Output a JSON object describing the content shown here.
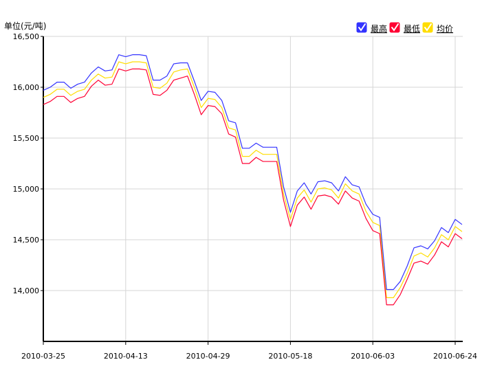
{
  "chart_data": {
    "type": "line",
    "ylabel": "单位(元/吨)",
    "ylim": [
      13500,
      16500
    ],
    "yticks": [
      16500,
      16000,
      15500,
      15000,
      14500,
      14000
    ],
    "ytick_labels": [
      "16,500",
      "16,000",
      "15,500",
      "15,000",
      "14,500",
      "14,000"
    ],
    "xtick_labels": [
      "2010-03-25",
      "2010-04-13",
      "2010-04-29",
      "2010-05-18",
      "2010-06-03",
      "2010-06-24"
    ],
    "xtick_indices": [
      0,
      12,
      24,
      36,
      48,
      60
    ],
    "grid": true,
    "legend_position": "top-right",
    "series": [
      {
        "name": "最高",
        "color": "#3333ff",
        "checked": true,
        "values": [
          15970,
          16000,
          16050,
          16050,
          15990,
          16030,
          16050,
          16140,
          16200,
          16160,
          16170,
          16320,
          16300,
          16320,
          16320,
          16310,
          16070,
          16070,
          16110,
          16230,
          16240,
          16240,
          16060,
          15870,
          15960,
          15950,
          15870,
          15670,
          15650,
          15400,
          15400,
          15450,
          15410,
          15410,
          15410,
          15020,
          14770,
          14980,
          15060,
          14950,
          15070,
          15080,
          15060,
          14980,
          15120,
          15040,
          15020,
          14850,
          14750,
          14720,
          14010,
          14010,
          14090,
          14240,
          14420,
          14440,
          14410,
          14490,
          14620,
          14570,
          14700,
          14650
        ]
      },
      {
        "name": "最低",
        "color": "#ff0033",
        "checked": true,
        "values": [
          15830,
          15860,
          15910,
          15910,
          15850,
          15890,
          15910,
          16010,
          16070,
          16020,
          16030,
          16180,
          16160,
          16180,
          16180,
          16170,
          15930,
          15920,
          15970,
          16070,
          16090,
          16110,
          15930,
          15730,
          15820,
          15810,
          15740,
          15540,
          15510,
          15250,
          15250,
          15310,
          15270,
          15270,
          15270,
          14890,
          14630,
          14840,
          14920,
          14800,
          14930,
          14940,
          14920,
          14850,
          14980,
          14910,
          14880,
          14710,
          14590,
          14560,
          13860,
          13860,
          13960,
          14110,
          14270,
          14290,
          14260,
          14350,
          14480,
          14430,
          14560,
          14510
        ]
      },
      {
        "name": "均价",
        "color": "#ffdd00",
        "checked": true,
        "values": [
          15900,
          15930,
          15980,
          15980,
          15920,
          15960,
          15980,
          16070,
          16130,
          16090,
          16100,
          16250,
          16230,
          16250,
          16250,
          16240,
          16000,
          15990,
          16040,
          16150,
          16170,
          16180,
          16000,
          15800,
          15890,
          15880,
          15800,
          15600,
          15580,
          15320,
          15320,
          15380,
          15340,
          15340,
          15340,
          14950,
          14700,
          14910,
          14990,
          14870,
          15000,
          15010,
          14990,
          14910,
          15050,
          14980,
          14950,
          14780,
          14670,
          14640,
          13930,
          13930,
          14030,
          14170,
          14340,
          14370,
          14330,
          14420,
          14550,
          14500,
          14630,
          14580
        ]
      }
    ]
  }
}
